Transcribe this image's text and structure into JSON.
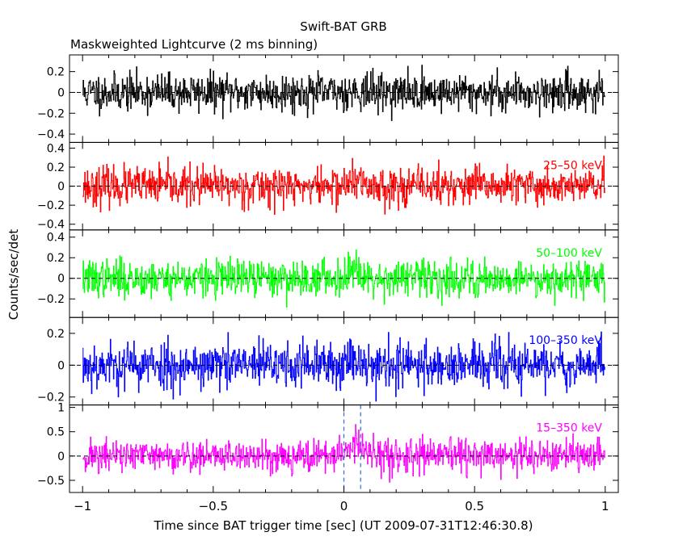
{
  "chart_data": {
    "type": "line",
    "title": "Swift-BAT GRB",
    "subtitle": "Maskweighted Lightcurve (2 ms binning)",
    "xlabel": "Time since BAT trigger time [sec] (UT 2009-07-31T12:46:30.8)",
    "ylabel": "Counts/sec/det",
    "xlim": [
      -1.05,
      1.05
    ],
    "x_ticks": [
      -1,
      -0.5,
      0,
      0.5,
      1
    ],
    "x_tick_labels": [
      "−1",
      "−0.5",
      "0",
      "0.5",
      "1"
    ],
    "bin_width_sec": 0.002,
    "markers": [
      {
        "name": "",
        "x": 0.0,
        "color": "#2a6fd6",
        "style": "dashed"
      },
      {
        "name": "",
        "x": 0.064,
        "color": "#2a6fd6",
        "style": "dashed"
      }
    ],
    "panels": [
      {
        "band": "",
        "color": "#000000",
        "ylim": [
          -0.48,
          0.36
        ],
        "yticks": [
          0.2,
          0,
          -0.2,
          -0.4
        ],
        "ytick_labels": [
          "0.2",
          "0",
          "−0.2",
          "−0.4"
        ],
        "noise_sigma": 0.09,
        "pulse_amp": 0.02,
        "seed": 11
      },
      {
        "band": "25–50 keV",
        "color": "#ff0000",
        "ylim": [
          -0.46,
          0.46
        ],
        "yticks": [
          0.4,
          0.2,
          0,
          -0.2,
          -0.4
        ],
        "ytick_labels": [
          "0.4",
          "0.2",
          "0",
          "−0.2",
          "−0.4"
        ],
        "noise_sigma": 0.1,
        "pulse_amp": 0.05,
        "seed": 23
      },
      {
        "band": "50–100 keV",
        "color": "#00ff00",
        "ylim": [
          -0.38,
          0.47
        ],
        "yticks": [
          0.4,
          0.2,
          0,
          -0.2
        ],
        "ytick_labels": [
          "0.4",
          "0.2",
          "0",
          "−0.2"
        ],
        "noise_sigma": 0.09,
        "pulse_amp": 0.12,
        "seed": 37
      },
      {
        "band": "100–350 keV",
        "color": "#0000ff",
        "ylim": [
          -0.25,
          0.3
        ],
        "yticks": [
          0.2,
          0,
          -0.2
        ],
        "ytick_labels": [
          "0.2",
          "0",
          "−0.2"
        ],
        "noise_sigma": 0.075,
        "pulse_amp": 0.05,
        "seed": 53
      },
      {
        "band": "15–350 keV",
        "color": "#ff00ff",
        "ylim": [
          -0.75,
          1.05
        ],
        "yticks": [
          1,
          0.5,
          0,
          -0.5
        ],
        "ytick_labels": [
          "1",
          "0.5",
          "0",
          "−0.5"
        ],
        "noise_sigma": 0.17,
        "pulse_amp": 0.28,
        "seed": 71
      }
    ]
  }
}
